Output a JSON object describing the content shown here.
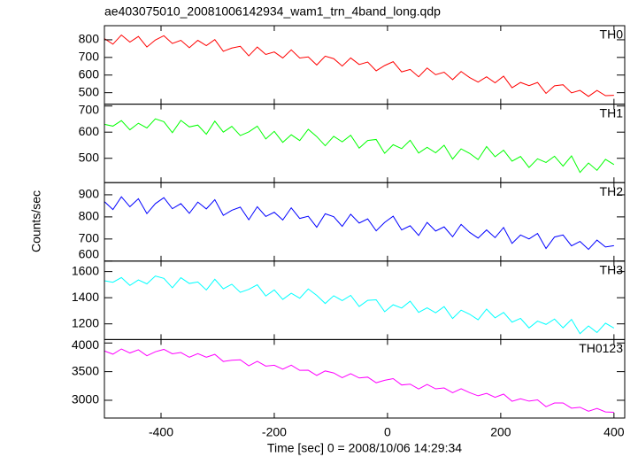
{
  "title": "ae403075010_20081006142934_wam1_trn_4band_long.qdp",
  "xlabel": "Time [sec] 0 = 2008/10/06 14:29:34",
  "ylabel": "Counts/sec",
  "chart_data": [
    {
      "type": "line",
      "label": "TH0",
      "color": "#ff0000",
      "x": [
        -500,
        -485,
        -470,
        -455,
        -440,
        -425,
        -410,
        -395,
        -380,
        -365,
        -350,
        -335,
        -320,
        -305,
        -290,
        -275,
        -260,
        -245,
        -230,
        -215,
        -200,
        -185,
        -170,
        -155,
        -140,
        -125,
        -110,
        -95,
        -80,
        -65,
        -50,
        -35,
        -20,
        -5,
        10,
        25,
        40,
        55,
        70,
        85,
        100,
        115,
        130,
        145,
        160,
        175,
        190,
        205,
        220,
        235,
        250,
        265,
        280,
        295,
        310,
        325,
        340,
        355,
        370,
        385,
        400
      ],
      "values": [
        807,
        775,
        827,
        787,
        819,
        759,
        799,
        823,
        779,
        797,
        755,
        797,
        767,
        801,
        735,
        753,
        763,
        709,
        759,
        717,
        731,
        697,
        743,
        697,
        703,
        657,
        707,
        693,
        651,
        697,
        660,
        674,
        624,
        654,
        676,
        618,
        632,
        590,
        640,
        602,
        616,
        574,
        620,
        586,
        560,
        590,
        556,
        594,
        528,
        558,
        540,
        558,
        496,
        539,
        545,
        499,
        513,
        479,
        513,
        483,
        485
      ],
      "ylim": [
        435,
        880
      ],
      "yticks": [
        500,
        600,
        700,
        800
      ]
    },
    {
      "type": "line",
      "label": "TH1",
      "color": "#00ff00",
      "x": [
        -500,
        -485,
        -470,
        -455,
        -440,
        -425,
        -410,
        -395,
        -380,
        -365,
        -350,
        -335,
        -320,
        -305,
        -290,
        -275,
        -260,
        -245,
        -230,
        -215,
        -200,
        -185,
        -170,
        -155,
        -140,
        -125,
        -110,
        -95,
        -80,
        -65,
        -50,
        -35,
        -20,
        -5,
        10,
        25,
        40,
        55,
        70,
        85,
        100,
        115,
        130,
        145,
        160,
        175,
        190,
        205,
        220,
        235,
        250,
        265,
        280,
        295,
        310,
        325,
        340,
        355,
        370,
        385,
        400
      ],
      "values": [
        630,
        623,
        644,
        609,
        634,
        616,
        651,
        640,
        598,
        645,
        620,
        627,
        592,
        642,
        600,
        622,
        587,
        601,
        623,
        574,
        603,
        561,
        590,
        568,
        611,
        583,
        548,
        584,
        563,
        588,
        539,
        568,
        572,
        519,
        552,
        537,
        569,
        520,
        542,
        521,
        550,
        497,
        536,
        519,
        495,
        545,
        506,
        531,
        489,
        507,
        465,
        498,
        484,
        508,
        470,
        509,
        446,
        482,
        454,
        496,
        476
      ],
      "ylim": [
        407,
        707
      ],
      "yticks": [
        500,
        600,
        700
      ]
    },
    {
      "type": "line",
      "label": "TH2",
      "color": "#0000ff",
      "x": [
        -500,
        -485,
        -470,
        -455,
        -440,
        -425,
        -410,
        -395,
        -380,
        -365,
        -350,
        -335,
        -320,
        -305,
        -290,
        -275,
        -260,
        -245,
        -230,
        -215,
        -200,
        -185,
        -170,
        -155,
        -140,
        -125,
        -110,
        -95,
        -80,
        -65,
        -50,
        -35,
        -20,
        -5,
        10,
        25,
        40,
        55,
        70,
        85,
        100,
        115,
        130,
        145,
        160,
        175,
        190,
        205,
        220,
        235,
        250,
        265,
        280,
        295,
        310,
        325,
        340,
        355,
        370,
        385,
        400
      ],
      "values": [
        869,
        833,
        891,
        846,
        882,
        815,
        860,
        887,
        837,
        860,
        816,
        867,
        836,
        878,
        807,
        830,
        844,
        787,
        846,
        802,
        821,
        786,
        841,
        793,
        803,
        753,
        814,
        801,
        757,
        812,
        772,
        791,
        737,
        775,
        803,
        741,
        760,
        716,
        775,
        736,
        755,
        710,
        766,
        730,
        704,
        741,
        706,
        752,
        680,
        718,
        700,
        725,
        657,
        709,
        718,
        669,
        689,
        653,
        695,
        664,
        670
      ],
      "ylim": [
        600,
        955
      ],
      "yticks": [
        600,
        700,
        800,
        900
      ]
    },
    {
      "type": "line",
      "label": "TH3",
      "color": "#00ffff",
      "x": [
        -500,
        -485,
        -470,
        -455,
        -440,
        -425,
        -410,
        -395,
        -380,
        -365,
        -350,
        -335,
        -320,
        -305,
        -290,
        -275,
        -260,
        -245,
        -230,
        -215,
        -200,
        -185,
        -170,
        -155,
        -140,
        -125,
        -110,
        -95,
        -80,
        -65,
        -50,
        -35,
        -20,
        -5,
        10,
        25,
        40,
        55,
        70,
        85,
        100,
        115,
        130,
        145,
        160,
        175,
        190,
        205,
        220,
        235,
        250,
        265,
        280,
        295,
        310,
        325,
        340,
        355,
        370,
        385,
        400
      ],
      "values": [
        1530,
        1518,
        1554,
        1494,
        1536,
        1506,
        1566,
        1548,
        1476,
        1553,
        1509,
        1520,
        1459,
        1541,
        1468,
        1503,
        1441,
        1464,
        1499,
        1413,
        1460,
        1387,
        1434,
        1396,
        1467,
        1418,
        1356,
        1415,
        1378,
        1418,
        1333,
        1380,
        1384,
        1293,
        1346,
        1321,
        1373,
        1288,
        1323,
        1285,
        1332,
        1241,
        1305,
        1274,
        1231,
        1313,
        1246,
        1287,
        1213,
        1242,
        1169,
        1221,
        1196,
        1237,
        1170,
        1234,
        1125,
        1184,
        1134,
        1205,
        1168
      ],
      "ylim": [
        1080,
        1680
      ],
      "yticks": [
        1200,
        1400,
        1600
      ]
    },
    {
      "type": "line",
      "label": "TH0123",
      "color": "#ff00ff",
      "x": [
        -500,
        -485,
        -470,
        -455,
        -440,
        -425,
        -410,
        -395,
        -380,
        -365,
        -350,
        -335,
        -320,
        -305,
        -290,
        -275,
        -260,
        -245,
        -230,
        -215,
        -200,
        -185,
        -170,
        -155,
        -140,
        -125,
        -110,
        -95,
        -80,
        -65,
        -50,
        -35,
        -20,
        -5,
        10,
        25,
        40,
        55,
        70,
        85,
        100,
        115,
        130,
        145,
        160,
        175,
        190,
        205,
        220,
        235,
        250,
        265,
        280,
        295,
        310,
        325,
        340,
        355,
        370,
        385,
        400
      ],
      "values": [
        3861,
        3805,
        3896,
        3826,
        3882,
        3777,
        3847,
        3889,
        3812,
        3834,
        3751,
        3814,
        3752,
        3802,
        3677,
        3699,
        3707,
        3602,
        3680,
        3597,
        3612,
        3543,
        3613,
        3523,
        3524,
        3434,
        3512,
        3477,
        3394,
        3465,
        3389,
        3404,
        3306,
        3349,
        3378,
        3267,
        3282,
        3198,
        3276,
        3200,
        3215,
        3132,
        3202,
        3133,
        3078,
        3121,
        3052,
        3108,
        2983,
        3026,
        2985,
        3007,
        2888,
        2952,
        2953,
        2863,
        2878,
        2808,
        2858,
        2796,
        2790
      ],
      "ylim": [
        2690,
        4060
      ],
      "yticks": [
        3000,
        3500,
        4000
      ],
      "xlim": [
        -500,
        419
      ],
      "xticks": [
        -400,
        -200,
        0,
        200,
        400
      ]
    }
  ]
}
